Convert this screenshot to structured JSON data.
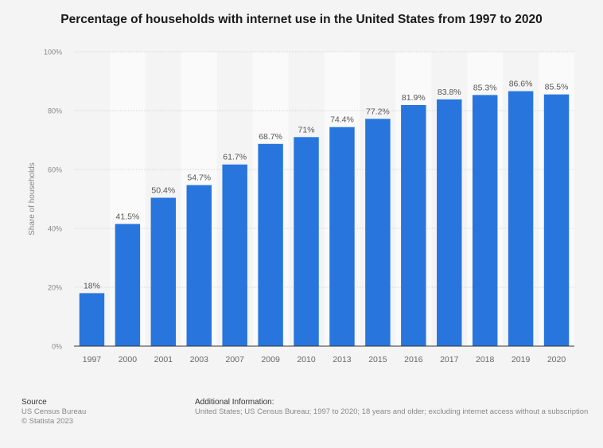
{
  "chart_data": {
    "type": "bar",
    "title": "Percentage of households with internet use in the United States from 1997 to 2020",
    "xlabel": "",
    "ylabel": "Share of households",
    "ylim": [
      0,
      100
    ],
    "yticks": [
      "0%",
      "20%",
      "40%",
      "60%",
      "80%",
      "100%"
    ],
    "ytick_values": [
      0,
      20,
      40,
      60,
      80,
      100
    ],
    "grid": true,
    "categories": [
      "1997",
      "2000",
      "2001",
      "2003",
      "2007",
      "2009",
      "2010",
      "2013",
      "2015",
      "2016",
      "2017",
      "2018",
      "2019",
      "2020"
    ],
    "values": [
      18,
      41.5,
      50.4,
      54.7,
      61.7,
      68.7,
      71,
      74.4,
      77.2,
      81.9,
      83.8,
      85.3,
      86.6,
      85.5
    ],
    "data_labels": [
      "18%",
      "41.5%",
      "50.4%",
      "54.7%",
      "61.7%",
      "68.7%",
      "71%",
      "74.4%",
      "77.2%",
      "81.9%",
      "83.8%",
      "85.3%",
      "86.6%",
      "85.5%"
    ],
    "bar_color": "#2876dd"
  },
  "footer": {
    "source_heading": "Source",
    "source_name": "US Census Bureau",
    "copyright": "© Statista 2023",
    "additional_heading": "Additional Information:",
    "additional_text": "United States; US Census Bureau; 1997 to 2020; 18 years and older; excluding internet access without a subscription"
  }
}
